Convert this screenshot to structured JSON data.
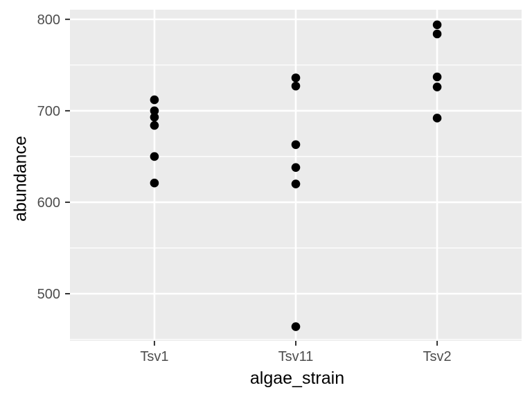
{
  "chart_data": {
    "type": "scatter",
    "title": "",
    "xlabel": "algae_strain",
    "ylabel": "abundance",
    "categories": [
      "Tsv1",
      "Tsv11",
      "Tsv2"
    ],
    "series": [
      {
        "name": "Tsv1",
        "values": [
          712,
          700,
          693,
          684,
          650,
          621
        ]
      },
      {
        "name": "Tsv11",
        "values": [
          736,
          727,
          663,
          638,
          620,
          464
        ]
      },
      {
        "name": "Tsv2",
        "values": [
          794,
          784,
          737,
          726,
          692
        ]
      }
    ],
    "y_ticks": [
      500,
      600,
      700,
      800
    ],
    "y_minor_ticks": [
      450,
      550,
      650,
      750
    ],
    "ylim": [
      448.5,
      810.5
    ],
    "grid": true,
    "legend": false,
    "style": {
      "background": "#FFFFFF",
      "panel_bg": "#EBEBEB",
      "grid_color": "#FFFFFF",
      "point_color": "#000000",
      "tick_mark_color": "#333333",
      "tick_label_color": "#4D4D4D",
      "axis_title_color": "#000000"
    }
  }
}
